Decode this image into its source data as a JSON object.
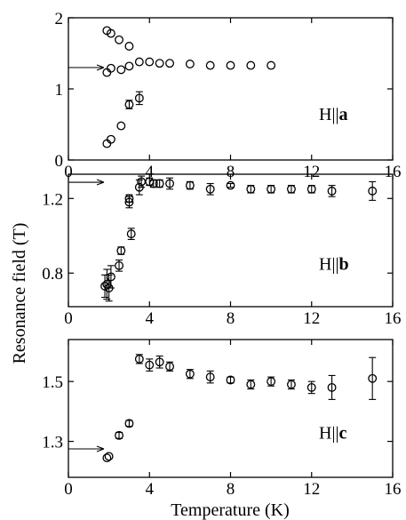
{
  "chart_data": [
    {
      "type": "scatter",
      "panel": "a",
      "label_prefix": "H||",
      "label_axis": "a",
      "xlim": [
        0,
        16
      ],
      "ylim": [
        0,
        2
      ],
      "x_ticks": [
        0,
        4,
        8,
        12,
        16
      ],
      "y_ticks": [
        0,
        1,
        2
      ],
      "arrow_y": 1.3,
      "points": [
        {
          "x": 1.9,
          "y": 1.82
        },
        {
          "x": 2.1,
          "y": 1.78
        },
        {
          "x": 2.5,
          "y": 1.69
        },
        {
          "x": 3.0,
          "y": 1.6
        },
        {
          "x": 1.9,
          "y": 1.23
        },
        {
          "x": 2.1,
          "y": 1.29
        },
        {
          "x": 2.6,
          "y": 1.27
        },
        {
          "x": 3.0,
          "y": 1.32
        },
        {
          "x": 3.5,
          "y": 1.38
        },
        {
          "x": 4.0,
          "y": 1.38
        },
        {
          "x": 4.5,
          "y": 1.36
        },
        {
          "x": 5.0,
          "y": 1.36
        },
        {
          "x": 6.0,
          "y": 1.35
        },
        {
          "x": 7.0,
          "y": 1.33
        },
        {
          "x": 8.0,
          "y": 1.33
        },
        {
          "x": 9.0,
          "y": 1.33
        },
        {
          "x": 10.0,
          "y": 1.33
        },
        {
          "x": 1.9,
          "y": 0.23
        },
        {
          "x": 2.1,
          "y": 0.29
        },
        {
          "x": 2.6,
          "y": 0.48
        },
        {
          "x": 3.0,
          "y": 0.78,
          "err": 0.06
        },
        {
          "x": 3.5,
          "y": 0.87,
          "err": 0.09
        }
      ]
    },
    {
      "type": "scatter",
      "panel": "b",
      "label_prefix": "H||",
      "label_axis": "b",
      "xlim": [
        0,
        16
      ],
      "ylim": [
        0.62,
        1.33
      ],
      "x_ticks": [
        0,
        4,
        8,
        12,
        16
      ],
      "y_ticks": [
        0.8,
        1.2
      ],
      "y_tick_labels": [
        "0.8",
        "1.2"
      ],
      "arrow_y": 1.287,
      "points": [
        {
          "x": 1.8,
          "y": 0.73,
          "err": 0.06
        },
        {
          "x": 1.9,
          "y": 0.74,
          "err": 0.08
        },
        {
          "x": 2.0,
          "y": 0.72,
          "err": 0.07
        },
        {
          "x": 2.1,
          "y": 0.78,
          "err": 0.06
        },
        {
          "x": 2.5,
          "y": 0.84,
          "err": 0.03
        },
        {
          "x": 2.6,
          "y": 0.92,
          "err": 0.02
        },
        {
          "x": 3.0,
          "y": 1.18,
          "err": 0.03
        },
        {
          "x": 3.0,
          "y": 1.2,
          "err": 0.02
        },
        {
          "x": 3.1,
          "y": 1.01,
          "err": 0.03
        },
        {
          "x": 3.5,
          "y": 1.26,
          "err": 0.04
        },
        {
          "x": 3.6,
          "y": 1.29,
          "err": 0.03
        },
        {
          "x": 4.0,
          "y": 1.29,
          "err": 0.02
        },
        {
          "x": 4.2,
          "y": 1.28,
          "err": 0.02
        },
        {
          "x": 4.5,
          "y": 1.28,
          "err": 0.02
        },
        {
          "x": 5.0,
          "y": 1.28,
          "err": 0.03
        },
        {
          "x": 6.0,
          "y": 1.27,
          "err": 0.02
        },
        {
          "x": 7.0,
          "y": 1.25,
          "err": 0.03
        },
        {
          "x": 8.0,
          "y": 1.27,
          "err": 0.01
        },
        {
          "x": 9.0,
          "y": 1.25,
          "err": 0.02
        },
        {
          "x": 10.0,
          "y": 1.25,
          "err": 0.02
        },
        {
          "x": 11.0,
          "y": 1.25,
          "err": 0.02
        },
        {
          "x": 12.0,
          "y": 1.25,
          "err": 0.02
        },
        {
          "x": 13.0,
          "y": 1.24,
          "err": 0.03
        },
        {
          "x": 15.0,
          "y": 1.24,
          "err": 0.05
        }
      ]
    },
    {
      "type": "scatter",
      "panel": "c",
      "label_prefix": "H||",
      "label_axis": "c",
      "xlim": [
        0,
        16
      ],
      "ylim": [
        1.18,
        1.64
      ],
      "x_ticks": [
        0,
        4,
        8,
        12,
        16
      ],
      "y_ticks": [
        1.3,
        1.5
      ],
      "y_tick_labels": [
        "1.3",
        "1.5"
      ],
      "arrow_y": 1.275,
      "points": [
        {
          "x": 1.9,
          "y": 1.245
        },
        {
          "x": 2.0,
          "y": 1.25
        },
        {
          "x": 2.5,
          "y": 1.32,
          "err": 0.01
        },
        {
          "x": 3.0,
          "y": 1.36,
          "err": 0.01
        },
        {
          "x": 3.5,
          "y": 1.575,
          "err": 0.015
        },
        {
          "x": 4.0,
          "y": 1.555,
          "err": 0.02
        },
        {
          "x": 4.5,
          "y": 1.565,
          "err": 0.02
        },
        {
          "x": 5.0,
          "y": 1.55,
          "err": 0.015
        },
        {
          "x": 6.0,
          "y": 1.525,
          "err": 0.015
        },
        {
          "x": 7.0,
          "y": 1.515,
          "err": 0.02
        },
        {
          "x": 8.0,
          "y": 1.505,
          "err": 0.01
        },
        {
          "x": 9.0,
          "y": 1.49,
          "err": 0.015
        },
        {
          "x": 10.0,
          "y": 1.5,
          "err": 0.015
        },
        {
          "x": 11.0,
          "y": 1.49,
          "err": 0.015
        },
        {
          "x": 12.0,
          "y": 1.48,
          "err": 0.02
        },
        {
          "x": 13.0,
          "y": 1.48,
          "err": 0.04
        },
        {
          "x": 15.0,
          "y": 1.51,
          "err": 0.07
        }
      ]
    }
  ],
  "labels": {
    "ylabel": "Resonance field (T)",
    "xlabel": "Temperature (K)"
  }
}
